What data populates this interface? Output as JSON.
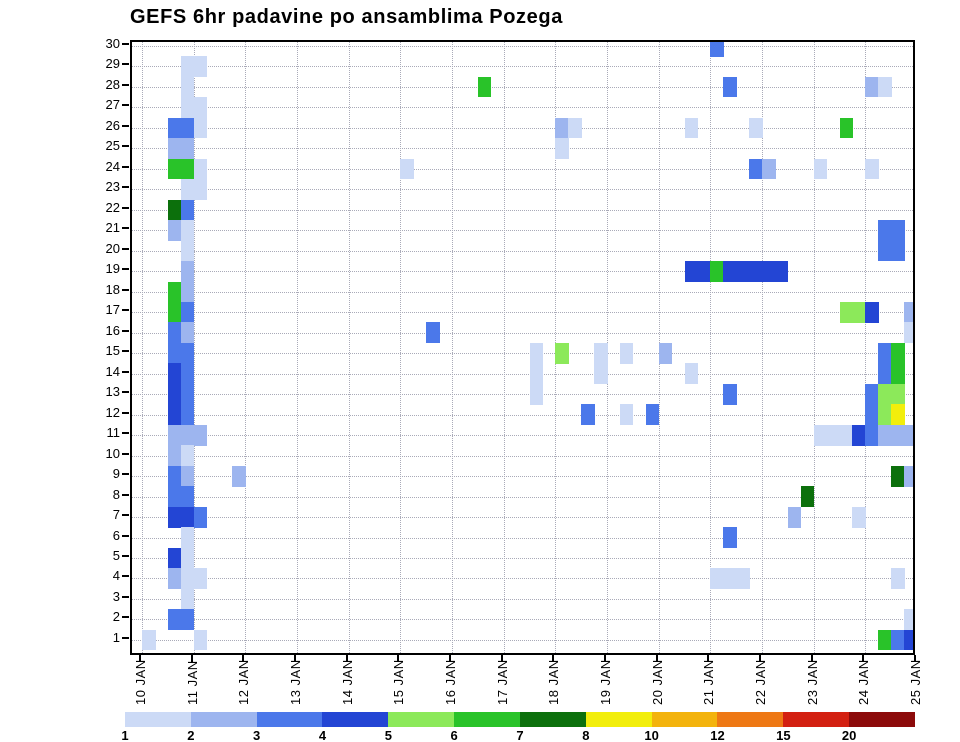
{
  "chart_data": {
    "type": "heatmap",
    "title": "GEFS 6hr padavine po ansamblima Pozega",
    "x_tick_labels": [
      "10 JAN",
      "11 JAN",
      "12 JAN",
      "13 JAN",
      "14 JAN",
      "15 JAN",
      "16 JAN",
      "17 JAN",
      "18 JAN",
      "19 JAN",
      "20 JAN",
      "21 JAN",
      "22 JAN",
      "23 JAN",
      "24 JAN",
      "25 JAN"
    ],
    "y_tick_labels": [
      "30",
      "29",
      "28",
      "27",
      "26",
      "25",
      "24",
      "23",
      "22",
      "21",
      "20",
      "19",
      "18",
      "17",
      "16",
      "15",
      "14",
      "13",
      "12",
      "11",
      "10",
      "9",
      "8",
      "7",
      "6",
      "5",
      "4",
      "3",
      "2",
      "1"
    ],
    "y_axis_meaning": "ensemble member",
    "time_steps_per_day": 4,
    "n_time_steps": 60,
    "grid": true,
    "legend": {
      "position": "bottom",
      "boundary_labels": [
        "1",
        "2",
        "3",
        "4",
        "5",
        "6",
        "7",
        "8",
        "10",
        "12",
        "15",
        "20"
      ],
      "colors": [
        "#ccdaf6",
        "#9db5ef",
        "#4b78ea",
        "#2345d4",
        "#8ce95a",
        "#29c329",
        "#0c700c",
        "#f2ee0c",
        "#f3b30d",
        "#ee7814",
        "#d32011",
        "#8c0a0a"
      ]
    },
    "cells": [
      [
        30,
        44,
        3
      ],
      [
        29,
        3,
        1
      ],
      [
        29,
        4,
        1
      ],
      [
        28,
        3,
        1
      ],
      [
        28,
        26,
        6
      ],
      [
        28,
        45,
        3
      ],
      [
        28,
        56,
        2
      ],
      [
        28,
        57,
        1
      ],
      [
        27,
        3,
        1
      ],
      [
        27,
        4,
        1
      ],
      [
        26,
        2,
        3
      ],
      [
        26,
        3,
        3
      ],
      [
        26,
        4,
        1
      ],
      [
        26,
        32,
        2
      ],
      [
        26,
        33,
        1
      ],
      [
        26,
        42,
        1
      ],
      [
        26,
        47,
        1
      ],
      [
        26,
        54,
        6
      ],
      [
        25,
        2,
        2
      ],
      [
        25,
        3,
        2
      ],
      [
        25,
        32,
        1
      ],
      [
        24,
        2,
        6
      ],
      [
        24,
        3,
        6
      ],
      [
        24,
        4,
        1
      ],
      [
        24,
        20,
        1
      ],
      [
        24,
        47,
        3
      ],
      [
        24,
        48,
        2
      ],
      [
        24,
        52,
        1
      ],
      [
        24,
        56,
        1
      ],
      [
        23,
        3,
        1
      ],
      [
        23,
        4,
        1
      ],
      [
        22,
        2,
        7
      ],
      [
        22,
        3,
        3
      ],
      [
        21,
        2,
        2
      ],
      [
        21,
        3,
        1
      ],
      [
        21,
        57,
        3
      ],
      [
        21,
        58,
        3
      ],
      [
        20,
        3,
        1
      ],
      [
        20,
        57,
        3
      ],
      [
        20,
        58,
        3
      ],
      [
        19,
        3,
        2
      ],
      [
        19,
        42,
        4
      ],
      [
        19,
        43,
        4
      ],
      [
        19,
        44,
        6
      ],
      [
        19,
        45,
        4
      ],
      [
        19,
        46,
        4
      ],
      [
        19,
        47,
        4
      ],
      [
        19,
        48,
        4
      ],
      [
        19,
        49,
        4
      ],
      [
        18,
        2,
        6
      ],
      [
        18,
        3,
        2
      ],
      [
        17,
        2,
        6
      ],
      [
        17,
        3,
        3
      ],
      [
        17,
        54,
        5
      ],
      [
        17,
        55,
        5
      ],
      [
        17,
        56,
        4
      ],
      [
        17,
        59,
        2
      ],
      [
        16,
        2,
        3
      ],
      [
        16,
        3,
        2
      ],
      [
        16,
        22,
        3
      ],
      [
        16,
        59,
        1
      ],
      [
        15,
        2,
        3
      ],
      [
        15,
        3,
        3
      ],
      [
        15,
        30,
        1
      ],
      [
        15,
        32,
        5
      ],
      [
        15,
        35,
        1
      ],
      [
        15,
        37,
        1
      ],
      [
        15,
        40,
        2
      ],
      [
        15,
        57,
        3
      ],
      [
        15,
        58,
        6
      ],
      [
        14,
        2,
        4
      ],
      [
        14,
        3,
        3
      ],
      [
        14,
        30,
        1
      ],
      [
        14,
        35,
        1
      ],
      [
        14,
        42,
        1
      ],
      [
        14,
        57,
        3
      ],
      [
        14,
        58,
        6
      ],
      [
        13,
        2,
        4
      ],
      [
        13,
        3,
        3
      ],
      [
        13,
        30,
        1
      ],
      [
        13,
        45,
        3
      ],
      [
        13,
        56,
        3
      ],
      [
        13,
        57,
        5
      ],
      [
        13,
        58,
        5
      ],
      [
        12,
        2,
        4
      ],
      [
        12,
        3,
        3
      ],
      [
        12,
        34,
        3
      ],
      [
        12,
        37,
        1
      ],
      [
        12,
        39,
        3
      ],
      [
        12,
        56,
        3
      ],
      [
        12,
        57,
        5
      ],
      [
        12,
        58,
        8
      ],
      [
        11,
        2,
        2
      ],
      [
        11,
        3,
        2
      ],
      [
        11,
        4,
        2
      ],
      [
        11,
        52,
        1
      ],
      [
        11,
        53,
        1
      ],
      [
        11,
        54,
        1
      ],
      [
        11,
        55,
        4
      ],
      [
        11,
        56,
        3
      ],
      [
        11,
        57,
        2
      ],
      [
        11,
        58,
        2
      ],
      [
        11,
        59,
        2
      ],
      [
        10,
        2,
        2
      ],
      [
        10,
        3,
        1
      ],
      [
        9,
        2,
        3
      ],
      [
        9,
        3,
        2
      ],
      [
        9,
        7,
        2
      ],
      [
        9,
        58,
        7
      ],
      [
        9,
        59,
        2
      ],
      [
        8,
        2,
        3
      ],
      [
        8,
        3,
        3
      ],
      [
        8,
        51,
        7
      ],
      [
        7,
        2,
        4
      ],
      [
        7,
        3,
        4
      ],
      [
        7,
        4,
        3
      ],
      [
        7,
        50,
        2
      ],
      [
        7,
        55,
        1
      ],
      [
        6,
        3,
        1
      ],
      [
        6,
        45,
        3
      ],
      [
        5,
        2,
        4
      ],
      [
        5,
        3,
        1
      ],
      [
        4,
        2,
        2
      ],
      [
        4,
        3,
        1
      ],
      [
        4,
        4,
        1
      ],
      [
        4,
        44,
        1
      ],
      [
        4,
        45,
        1
      ],
      [
        4,
        46,
        1
      ],
      [
        4,
        58,
        1
      ],
      [
        3,
        3,
        1
      ],
      [
        2,
        2,
        3
      ],
      [
        2,
        3,
        3
      ],
      [
        2,
        59,
        1
      ],
      [
        1,
        0,
        1
      ],
      [
        1,
        4,
        1
      ],
      [
        1,
        57,
        6
      ],
      [
        1,
        58,
        3
      ],
      [
        1,
        59,
        4
      ]
    ]
  }
}
